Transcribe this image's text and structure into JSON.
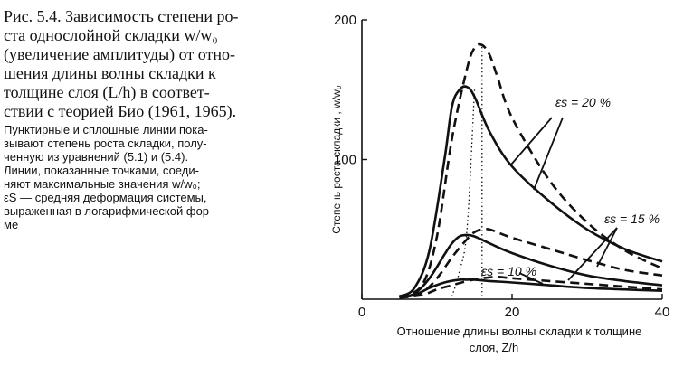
{
  "caption": {
    "main_lines": [
      "Рис. 5.4. Зависимость степени ро-",
      "ста однослойной складки w/w₀",
      "(увеличение амплитуды) от отно-",
      "шения длины волны складки к",
      "толщине слоя (L/h) в соответ-",
      "ствии с теорией Био (1961, 1965)."
    ],
    "note_lines": [
      "Пунктирные и сплошные линии пока-",
      "зывают степень роста складки, полу-",
      "ченную из уравнений (5.1) и (5.4).",
      "Линии, показанные точками, соеди-",
      "няют максимальные значения w/w₀;",
      "εS — средняя деформация системы,",
      "выраженная в логарифмической фор-",
      "ме"
    ]
  },
  "chart_data": {
    "type": "line",
    "ylabel": "Степень роста складки ,  w/w₀",
    "xlabel_line1": "Отношение длины волны складки к толщине",
    "xlabel_line2": "слоя,  Z/h",
    "xlim": [
      0,
      40
    ],
    "ylim": [
      0,
      200
    ],
    "x_ticks": [
      "0",
      "20",
      "40"
    ],
    "y_ticks": [
      "100",
      "200"
    ],
    "annotations": [
      "εs = 20 %",
      "εs = 15 %",
      "εs = 10 %"
    ],
    "series": [
      {
        "style": "solid",
        "group": "20",
        "x": [
          5,
          7,
          9,
          11,
          12,
          13,
          14,
          15,
          17,
          20,
          25,
          30,
          35,
          40
        ],
        "y": [
          2,
          8,
          35,
          100,
          138,
          150,
          152,
          145,
          120,
          95,
          70,
          50,
          36,
          27
        ]
      },
      {
        "style": "dashed",
        "group": "20",
        "x": [
          5,
          8,
          10,
          12,
          14,
          15,
          16,
          17,
          18,
          20,
          25,
          30,
          35,
          40
        ],
        "y": [
          2,
          10,
          45,
          115,
          165,
          180,
          182,
          175,
          160,
          130,
          85,
          55,
          35,
          22
        ]
      },
      {
        "style": "solid",
        "group": "15",
        "x": [
          5,
          7,
          9,
          11,
          12,
          13,
          14,
          15,
          17,
          20,
          25,
          30,
          35,
          40
        ],
        "y": [
          1,
          4,
          15,
          32,
          40,
          45,
          46,
          45,
          40,
          33,
          24,
          17,
          13,
          10
        ]
      },
      {
        "style": "dashed",
        "group": "15",
        "x": [
          5,
          8,
          10,
          12,
          14,
          15,
          16,
          17,
          18,
          20,
          25,
          30,
          35,
          40
        ],
        "y": [
          1,
          5,
          15,
          30,
          43,
          48,
          50,
          50,
          48,
          44,
          36,
          28,
          21,
          17
        ]
      },
      {
        "style": "solid",
        "group": "10",
        "x": [
          5,
          7,
          9,
          11,
          13,
          14,
          15,
          17,
          20,
          25,
          30,
          35,
          40
        ],
        "y": [
          1,
          3,
          8,
          12,
          14,
          14,
          14,
          13,
          12,
          10,
          8,
          7,
          6
        ]
      },
      {
        "style": "dashed",
        "group": "10",
        "x": [
          5,
          8,
          10,
          12,
          14,
          16,
          18,
          20,
          25,
          30,
          35,
          40
        ],
        "y": [
          1,
          3,
          7,
          10,
          13,
          15,
          16,
          15,
          13,
          11,
          9,
          7
        ]
      },
      {
        "style": "dotted",
        "group": "max",
        "x": [
          12,
          13,
          14,
          15
        ],
        "y": [
          2,
          20,
          50,
          150
        ]
      },
      {
        "style": "dotted",
        "group": "max",
        "x": [
          16,
          16,
          16,
          16
        ],
        "y": [
          2,
          20,
          50,
          182
        ]
      }
    ]
  }
}
